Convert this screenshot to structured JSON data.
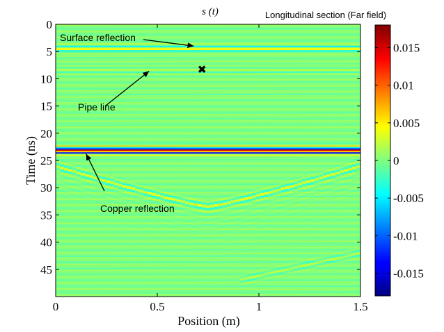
{
  "chart_data": {
    "type": "heatmap",
    "title": "s (t)",
    "subtitle": "Longitudinal section (Far field)",
    "xlabel": "Position (m)",
    "ylabel": "Time (ns)",
    "xlim": [
      0,
      1.5
    ],
    "ylim": [
      0,
      50
    ],
    "y_reversed": true,
    "x_ticks": [
      "0",
      "0.5",
      "1",
      "1.5"
    ],
    "x_tick_values": [
      0,
      0.5,
      1,
      1.5
    ],
    "y_ticks": [
      "0",
      "5",
      "10",
      "15",
      "20",
      "25",
      "30",
      "35",
      "40",
      "45"
    ],
    "y_tick_values": [
      0,
      5,
      10,
      15,
      20,
      25,
      30,
      35,
      40,
      45
    ],
    "colorbar": {
      "range": [
        -0.018,
        0.018
      ],
      "ticks": [
        "0.015",
        "0.01",
        "0.005",
        "0",
        "-0.005",
        "-0.01",
        "-0.015"
      ],
      "tick_values": [
        0.015,
        0.01,
        0.005,
        0,
        -0.005,
        -0.01,
        -0.015
      ]
    },
    "features": [
      {
        "kind": "band",
        "time": 4.5,
        "amplitude": 0.006
      },
      {
        "kind": "band",
        "time": 8.4,
        "amplitude": 0.004
      },
      {
        "kind": "band",
        "time": 23.2,
        "amplitude": 0.018
      },
      {
        "kind": "hyperbola",
        "apex_x": 0.75,
        "apex_t": 33.5,
        "edge_t": 26
      },
      {
        "kind": "diagonal",
        "from": [
          0.9,
          47
        ],
        "to": [
          1.5,
          42
        ]
      }
    ],
    "marker": {
      "x": 0.72,
      "t": 8.2,
      "symbol": "✖"
    },
    "annotations": [
      {
        "text": "Surface reflection",
        "target": [
          0.68,
          4.0
        ]
      },
      {
        "text": "Pipe line",
        "target": [
          0.46,
          8.6
        ]
      },
      {
        "text": "Copper reflection",
        "target": [
          0.15,
          23.8
        ]
      }
    ]
  }
}
